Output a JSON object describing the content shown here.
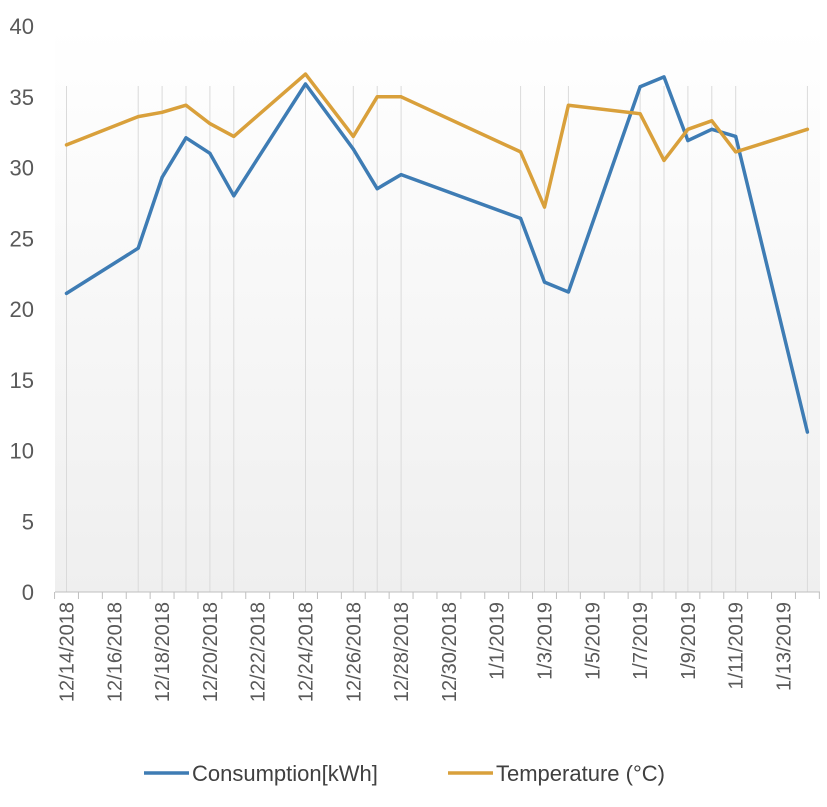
{
  "chart_data": {
    "type": "line",
    "title": "",
    "xlabel": "",
    "ylabel": "",
    "ylim": [
      0,
      40
    ],
    "yticks": [
      0,
      5,
      10,
      15,
      20,
      25,
      30,
      35,
      40
    ],
    "xlim_day": [
      0,
      31
    ],
    "x_tick_labels": [
      {
        "day": 0,
        "label": "12/14/2018"
      },
      {
        "day": 2,
        "label": "12/16/2018"
      },
      {
        "day": 4,
        "label": "12/18/2018"
      },
      {
        "day": 6,
        "label": "12/20/2018"
      },
      {
        "day": 8,
        "label": "12/22/2018"
      },
      {
        "day": 10,
        "label": "12/24/2018"
      },
      {
        "day": 12,
        "label": "12/26/2018"
      },
      {
        "day": 14,
        "label": "12/28/2018"
      },
      {
        "day": 16,
        "label": "12/30/2018"
      },
      {
        "day": 18,
        "label": "1/1/2019"
      },
      {
        "day": 20,
        "label": "1/3/2019"
      },
      {
        "day": 22,
        "label": "1/5/2019"
      },
      {
        "day": 24,
        "label": "1/7/2019"
      },
      {
        "day": 26,
        "label": "1/9/2019"
      },
      {
        "day": 28,
        "label": "1/11/2019"
      },
      {
        "day": 30,
        "label": "1/13/2019"
      }
    ],
    "x_days": [
      0,
      3,
      4,
      5,
      6,
      7,
      10,
      12,
      13,
      14,
      19,
      20,
      21,
      24,
      25,
      26,
      27,
      28,
      31
    ],
    "series": [
      {
        "name": "Consumption[kWh]",
        "color": "#3e7cb4",
        "values": [
          21.1,
          24.3,
          29.3,
          32.1,
          31.0,
          28.0,
          35.9,
          31.3,
          28.5,
          29.5,
          26.4,
          21.9,
          21.2,
          35.7,
          36.4,
          31.9,
          32.7,
          32.2,
          11.3
        ]
      },
      {
        "name": "Temperature (°C)",
        "color": "#d9a03b",
        "values": [
          31.6,
          33.6,
          33.9,
          34.4,
          33.1,
          32.2,
          36.6,
          32.2,
          35.0,
          35.0,
          31.1,
          27.2,
          34.4,
          33.8,
          30.5,
          32.7,
          33.3,
          31.1,
          32.7
        ]
      }
    ],
    "legend_position": "bottom"
  }
}
